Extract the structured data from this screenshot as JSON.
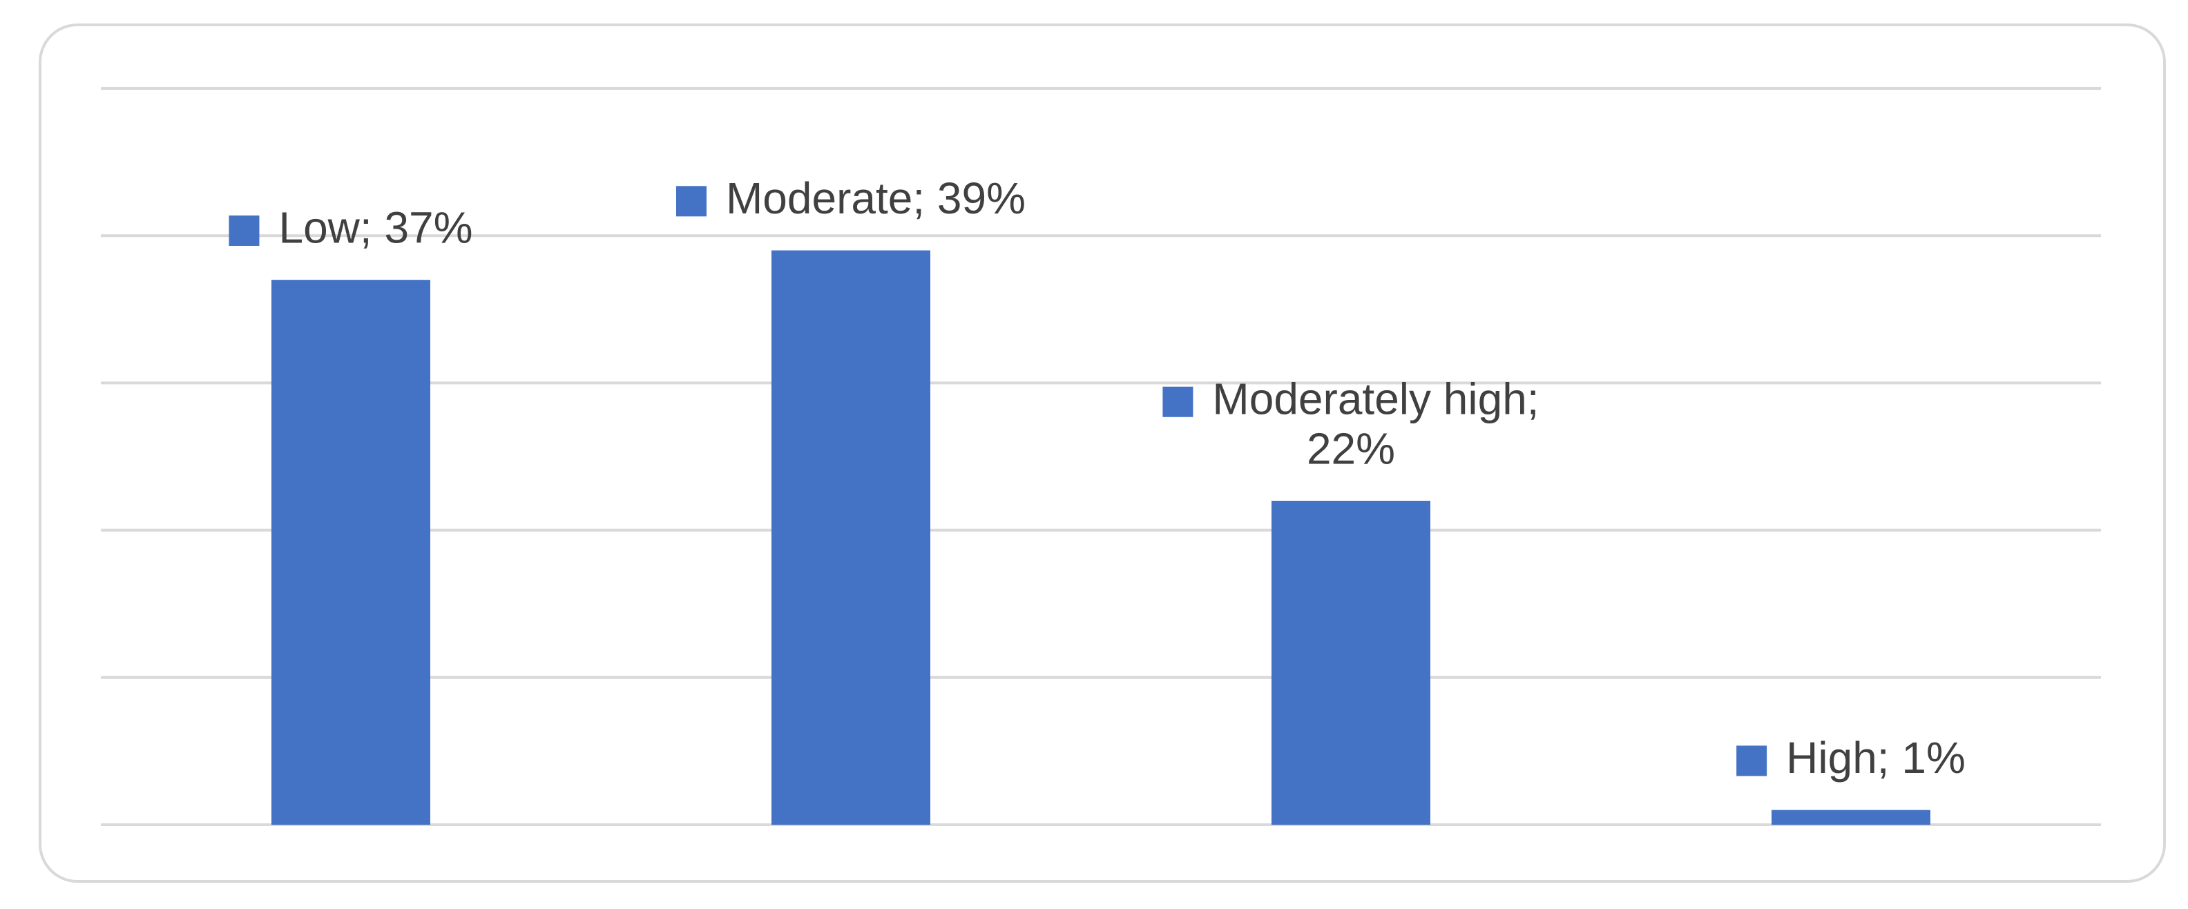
{
  "colors": {
    "bar": "#4472c4",
    "gridline": "#d9d9d9",
    "label_text": "#404040"
  },
  "chart_data": {
    "type": "bar",
    "categories": [
      "Low",
      "Moderate",
      "Moderately high",
      "High"
    ],
    "values": [
      37,
      39,
      22,
      1
    ],
    "data_labels": [
      "Low; 37%",
      "Moderate; 39%",
      "Moderately high; 22%",
      "High; 1%"
    ],
    "value_unit": "%",
    "ylim": [
      0,
      50
    ],
    "grid": true,
    "legend": "none",
    "title": "",
    "xlabel": "",
    "ylabel": ""
  }
}
